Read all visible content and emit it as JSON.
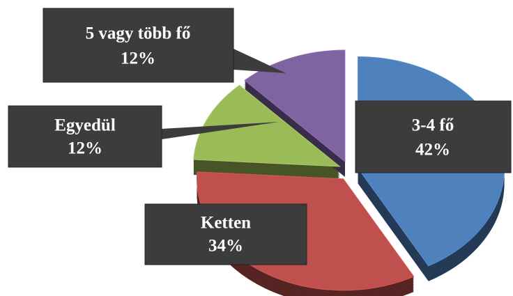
{
  "chart_data": {
    "type": "pie",
    "categories": [
      "3-4 fő",
      "Ketten",
      "Egyedül",
      "5 vagy több fő"
    ],
    "values": [
      42,
      34,
      12,
      12
    ],
    "value_labels": [
      "42%",
      "34%",
      "12%",
      "12%"
    ],
    "colors": [
      "#4f81bd",
      "#c0504d",
      "#9bbb59",
      "#8064a2"
    ]
  }
}
